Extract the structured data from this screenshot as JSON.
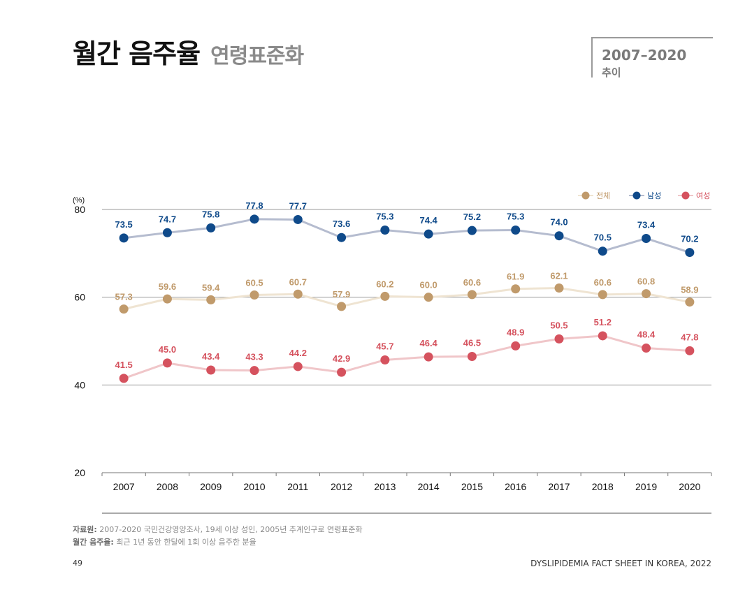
{
  "header": {
    "title": "월간 음주율",
    "subtitle": "연령표준화",
    "period": "2007–2020",
    "period_label": "추이"
  },
  "chart_data": {
    "type": "line",
    "ylabel": "(%)",
    "ylim": [
      20,
      80
    ],
    "yticks": [
      20,
      40,
      60,
      80
    ],
    "grid": true,
    "legend_position": "top-right",
    "categories": [
      "2007",
      "2008",
      "2009",
      "2010",
      "2011",
      "2012",
      "2013",
      "2014",
      "2015",
      "2016",
      "2017",
      "2018",
      "2019",
      "2020"
    ],
    "series": [
      {
        "name": "전체",
        "color": "#c09a6b",
        "line_color": "#efe4d2",
        "values": [
          57.3,
          59.6,
          59.4,
          60.5,
          60.7,
          57.9,
          60.2,
          60.0,
          60.6,
          61.9,
          62.1,
          60.6,
          60.8,
          58.9
        ]
      },
      {
        "name": "남성",
        "color": "#0f4a8a",
        "line_color": "#b5bccf",
        "values": [
          73.5,
          74.7,
          75.8,
          77.8,
          77.7,
          73.6,
          75.3,
          74.4,
          75.2,
          75.3,
          74.0,
          70.5,
          73.4,
          70.2
        ]
      },
      {
        "name": "여성",
        "color": "#d5525e",
        "line_color": "#f0c6c9",
        "values": [
          41.5,
          45.0,
          43.4,
          43.3,
          44.2,
          42.9,
          45.7,
          46.4,
          46.5,
          48.9,
          50.5,
          51.2,
          48.4,
          47.8
        ]
      }
    ]
  },
  "footer": {
    "source_label": "자료원:",
    "source_text": "2007-2020 국민건강영양조사, 19세 이상 성인, 2005년 추계인구로 연령표준화",
    "definition_label": "월간 음주율:",
    "definition_text": "최근 1년 동안 한달에 1회 이상 음주한 분율",
    "page_number": "49",
    "document_name": "DYSLIPIDEMIA FACT SHEET IN KOREA, 2022"
  }
}
